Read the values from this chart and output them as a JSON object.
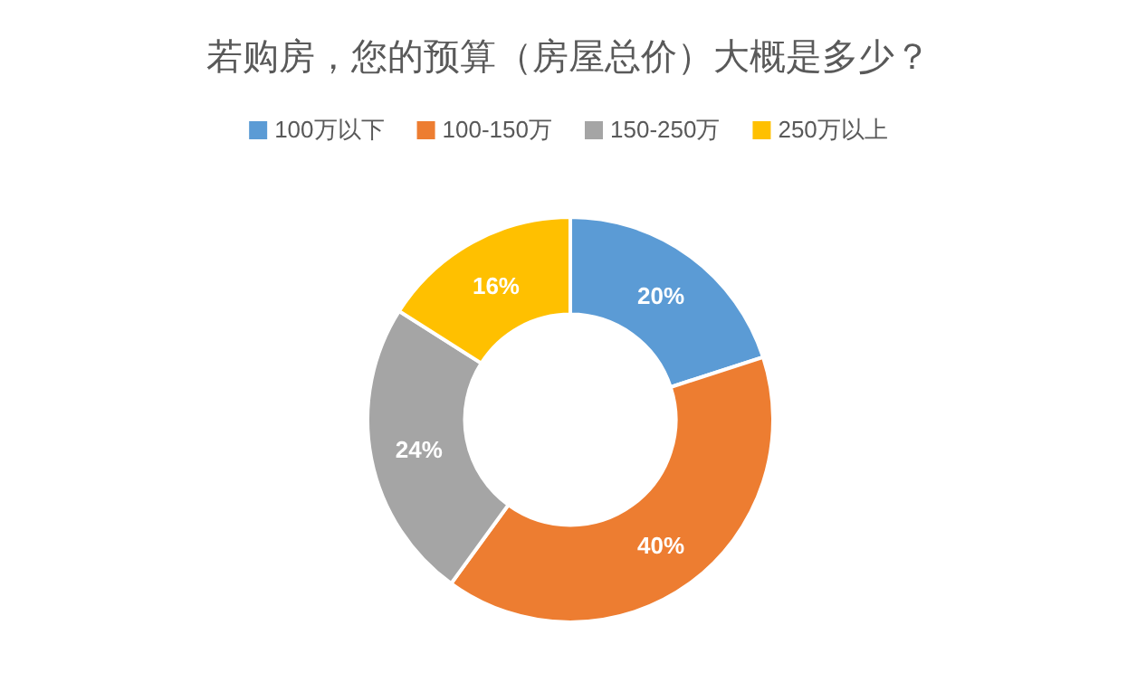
{
  "chart_data": {
    "type": "donut",
    "title": "若购房，您的预算（房屋总价）大概是多少？",
    "categories": [
      "100万以下",
      "100-150万",
      "150-250万",
      "250万以上"
    ],
    "values": [
      20,
      40,
      24,
      16
    ],
    "colors": [
      "#5b9bd5",
      "#ed7d31",
      "#a5a5a5",
      "#ffc000"
    ],
    "value_labels": [
      "20%",
      "40%",
      "24%",
      "16%"
    ],
    "legend": "top"
  }
}
